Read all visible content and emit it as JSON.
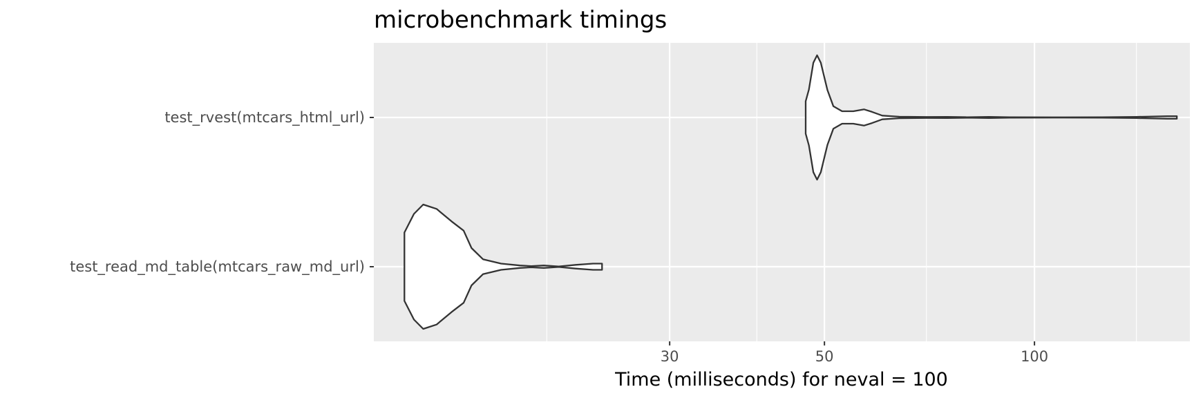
{
  "chart_data": {
    "type": "violin",
    "title": "microbenchmark timings",
    "xlabel": "Time (milliseconds) for neval = 100",
    "ylabel": "",
    "x_scale": "log10",
    "xlim": [
      11.3,
      167
    ],
    "x_ticks": [
      30,
      50,
      100
    ],
    "x_minor_gridlines": [
      20,
      40,
      70,
      140
    ],
    "grid": true,
    "legend": "none",
    "panel_background": "#ebebeb",
    "grid_color": "#ffffff",
    "violin_fill": "#ffffff",
    "violin_outline": "#333333",
    "categories": [
      "test_rvest(mtcars_html_url)",
      "test_read_md_table(mtcars_raw_md_url)"
    ],
    "violins": [
      {
        "label": "test_rvest(mtcars_html_url)",
        "min": 47.0,
        "max": 160,
        "density_profile": [
          [
            47.0,
            0.26
          ],
          [
            47.5,
            0.45
          ],
          [
            48.2,
            0.88
          ],
          [
            48.8,
            1.0
          ],
          [
            49.4,
            0.88
          ],
          [
            50.5,
            0.44
          ],
          [
            51.5,
            0.18
          ],
          [
            53.0,
            0.1
          ],
          [
            55.0,
            0.1
          ],
          [
            57.0,
            0.13
          ],
          [
            58.5,
            0.09
          ],
          [
            60.5,
            0.03
          ],
          [
            64.0,
            0.012
          ],
          [
            70.0,
            0.008
          ],
          [
            75.0,
            0.01
          ],
          [
            80.0,
            0.004
          ],
          [
            86.0,
            0.01
          ],
          [
            92.0,
            0.003
          ],
          [
            110.0,
            0.002
          ],
          [
            125.0,
            0.005
          ],
          [
            140.0,
            0.01
          ],
          [
            155.0,
            0.02
          ],
          [
            160.0,
            0.02
          ]
        ]
      },
      {
        "label": "test_read_md_table(mtcars_raw_md_url)",
        "min": 12.5,
        "max": 24,
        "density_profile": [
          [
            12.5,
            0.55
          ],
          [
            12.9,
            0.85
          ],
          [
            13.3,
            1.0
          ],
          [
            13.9,
            0.93
          ],
          [
            14.6,
            0.73
          ],
          [
            15.2,
            0.58
          ],
          [
            15.6,
            0.3
          ],
          [
            16.2,
            0.12
          ],
          [
            17.2,
            0.05
          ],
          [
            18.3,
            0.02
          ],
          [
            19.0,
            0.01
          ],
          [
            19.8,
            0.02
          ],
          [
            20.8,
            0.005
          ],
          [
            22.0,
            0.03
          ],
          [
            23.3,
            0.05
          ],
          [
            24.0,
            0.05
          ]
        ]
      }
    ]
  }
}
